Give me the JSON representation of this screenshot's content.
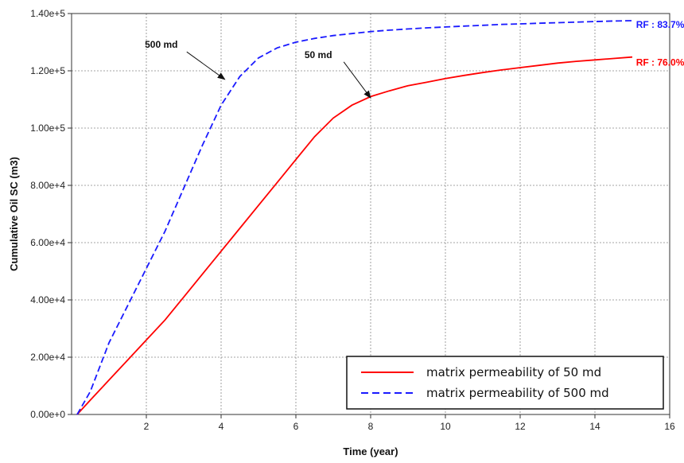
{
  "chart_data": {
    "type": "line",
    "xlabel": "Time (year)",
    "ylabel": "Cumulative Oil SC (m3)",
    "xlim": [
      0,
      16
    ],
    "ylim": [
      0,
      140000
    ],
    "x_ticks": [
      2,
      4,
      6,
      8,
      10,
      12,
      14,
      16
    ],
    "y_ticks": [
      0,
      20000,
      40000,
      60000,
      80000,
      100000,
      120000,
      140000
    ],
    "y_tick_labels": [
      "0.00e+0",
      "2.00e+4",
      "4.00e+4",
      "6.00e+4",
      "8.00e+4",
      "1.00e+5",
      "1.20e+5",
      "1.40e+5"
    ],
    "grid": true,
    "legend_position": "bottom-right",
    "series": [
      {
        "name": "matrix permeability of 50 md",
        "color": "#ff0000",
        "style": "solid",
        "x": [
          0.15,
          0.5,
          1,
          1.5,
          2,
          2.5,
          3,
          3.5,
          4,
          4.5,
          5,
          5.5,
          6,
          6.5,
          7,
          7.5,
          8,
          8.5,
          9,
          9.5,
          10,
          10.5,
          11,
          11.5,
          12,
          12.5,
          13,
          13.5,
          14,
          14.5,
          15
        ],
        "y": [
          0,
          5000,
          12000,
          19000,
          26000,
          33000,
          41000,
          49000,
          57000,
          65000,
          73000,
          81000,
          89000,
          97000,
          103500,
          108000,
          111000,
          113000,
          114800,
          116000,
          117300,
          118400,
          119400,
          120300,
          121100,
          121900,
          122700,
          123300,
          123800,
          124300,
          124800
        ]
      },
      {
        "name": "matrix permeability of 500 md",
        "color": "#1a1aff",
        "style": "dashed",
        "x": [
          0.15,
          0.5,
          1,
          1.5,
          2,
          2.5,
          3,
          3.5,
          4,
          4.5,
          5,
          5.5,
          6,
          6.5,
          7,
          7.5,
          8,
          8.5,
          9,
          9.5,
          10,
          10.5,
          11,
          11.5,
          12,
          12.5,
          13,
          13.5,
          14,
          14.5,
          15
        ],
        "y": [
          0,
          8000,
          25000,
          38000,
          51000,
          64000,
          79000,
          94000,
          108000,
          118000,
          124500,
          128000,
          130000,
          131300,
          132300,
          133000,
          133700,
          134200,
          134600,
          135000,
          135300,
          135600,
          135900,
          136200,
          136400,
          136600,
          136800,
          137000,
          137200,
          137400,
          137500
        ]
      }
    ],
    "annotations": [
      {
        "text": "500 md",
        "x": 2.4,
        "y": 128000,
        "arrow_to_x": 4.1,
        "arrow_to_y": 117000
      },
      {
        "text": "50 md",
        "x": 6.6,
        "y": 124500,
        "arrow_to_x": 8.0,
        "arrow_to_y": 110500
      }
    ],
    "rf_labels": [
      {
        "text": "RF : 83.7%",
        "color": "#1a1aff",
        "x": 15.1,
        "y": 135000
      },
      {
        "text": "RF : 76.0%",
        "color": "#ff0000",
        "x": 15.1,
        "y": 121800
      }
    ]
  }
}
